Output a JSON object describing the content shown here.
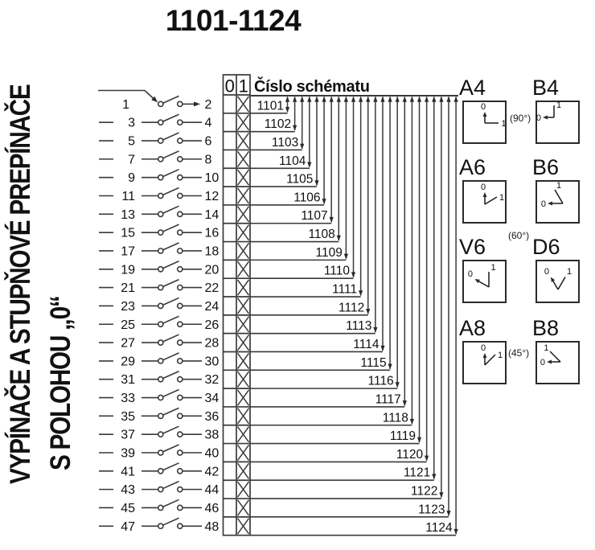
{
  "title": "1101-1124",
  "side_title": {
    "line1": "VYPÍNAČE A STUPŇOVÉ PREPÍNAČE",
    "line2": "S POLOHOU „0“"
  },
  "schematic": {
    "header_label": "Číslo schématu",
    "col0": "0",
    "col1": "1",
    "rows": [
      {
        "left": "1",
        "right": "2",
        "schema": "1101",
        "pos0": "",
        "pos1": "X"
      },
      {
        "left": "3",
        "right": "4",
        "schema": "1102",
        "pos0": "",
        "pos1": "X"
      },
      {
        "left": "5",
        "right": "6",
        "schema": "1103",
        "pos0": "",
        "pos1": "X"
      },
      {
        "left": "7",
        "right": "8",
        "schema": "1104",
        "pos0": "",
        "pos1": "X"
      },
      {
        "left": "9",
        "right": "10",
        "schema": "1105",
        "pos0": "",
        "pos1": "X"
      },
      {
        "left": "11",
        "right": "12",
        "schema": "1106",
        "pos0": "",
        "pos1": "X"
      },
      {
        "left": "13",
        "right": "14",
        "schema": "1107",
        "pos0": "",
        "pos1": "X"
      },
      {
        "left": "15",
        "right": "16",
        "schema": "1108",
        "pos0": "",
        "pos1": "X"
      },
      {
        "left": "17",
        "right": "18",
        "schema": "1109",
        "pos0": "",
        "pos1": "X"
      },
      {
        "left": "19",
        "right": "20",
        "schema": "1110",
        "pos0": "",
        "pos1": "X"
      },
      {
        "left": "21",
        "right": "22",
        "schema": "1111",
        "pos0": "",
        "pos1": "X"
      },
      {
        "left": "23",
        "right": "24",
        "schema": "1112",
        "pos0": "",
        "pos1": "X"
      },
      {
        "left": "25",
        "right": "26",
        "schema": "1113",
        "pos0": "",
        "pos1": "X"
      },
      {
        "left": "27",
        "right": "28",
        "schema": "1114",
        "pos0": "",
        "pos1": "X"
      },
      {
        "left": "29",
        "right": "30",
        "schema": "1115",
        "pos0": "",
        "pos1": "X"
      },
      {
        "left": "31",
        "right": "32",
        "schema": "1116",
        "pos0": "",
        "pos1": "X"
      },
      {
        "left": "33",
        "right": "34",
        "schema": "1117",
        "pos0": "",
        "pos1": "X"
      },
      {
        "left": "35",
        "right": "36",
        "schema": "1118",
        "pos0": "",
        "pos1": "X"
      },
      {
        "left": "37",
        "right": "38",
        "schema": "1119",
        "pos0": "",
        "pos1": "X"
      },
      {
        "left": "39",
        "right": "40",
        "schema": "1120",
        "pos0": "",
        "pos1": "X"
      },
      {
        "left": "41",
        "right": "42",
        "schema": "1121",
        "pos0": "",
        "pos1": "X"
      },
      {
        "left": "43",
        "right": "44",
        "schema": "1122",
        "pos0": "",
        "pos1": "X"
      },
      {
        "left": "45",
        "right": "46",
        "schema": "1123",
        "pos0": "",
        "pos1": "X"
      },
      {
        "left": "47",
        "right": "48",
        "schema": "1124",
        "pos0": "",
        "pos1": "X"
      }
    ]
  },
  "switch_types": [
    {
      "code": "A4",
      "zero_dir": 0,
      "one_dir": 90
    },
    {
      "code": "B4",
      "zero_dir": 270,
      "one_dir": 0
    },
    {
      "code": "A6",
      "zero_dir": 0,
      "one_dir": 60
    },
    {
      "code": "B6",
      "zero_dir": 270,
      "one_dir": 330
    },
    {
      "code": "V6",
      "zero_dir": 300,
      "one_dir": 0
    },
    {
      "code": "D6",
      "zero_dir": 330,
      "one_dir": 30
    },
    {
      "code": "A8",
      "zero_dir": 0,
      "one_dir": 45
    },
    {
      "code": "B8",
      "zero_dir": 270,
      "one_dir": 315
    }
  ],
  "angle_labels": [
    {
      "text": "(90°)"
    },
    {
      "text": "(60°)"
    },
    {
      "text": "(45°)"
    }
  ],
  "position_labels": {
    "zero": "0",
    "one": "1"
  },
  "colors": {
    "ink": "#101010",
    "line": "#3a3a3a"
  }
}
